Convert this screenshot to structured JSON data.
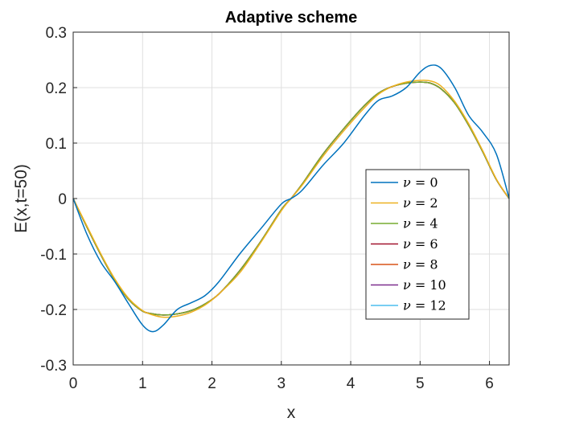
{
  "chart_data": {
    "type": "line",
    "title": "Adaptive scheme",
    "xlabel": "x",
    "ylabel": "E(x,t=50)",
    "xlim": [
      0,
      6.2832
    ],
    "ylim": [
      -0.3,
      0.3
    ],
    "xticks": [
      0,
      1,
      2,
      3,
      4,
      5,
      6
    ],
    "xtick_labels": [
      "0",
      "1",
      "2",
      "3",
      "4",
      "5",
      "6"
    ],
    "yticks": [
      -0.3,
      -0.2,
      -0.1,
      0,
      0.1,
      0.2,
      0.3
    ],
    "ytick_labels": [
      "-0.3",
      "-0.2",
      "-0.1",
      "0",
      "0.1",
      "0.2",
      "0.3"
    ],
    "grid": true,
    "legend_position": "center-right",
    "x": [
      0,
      0.2,
      0.4,
      0.6,
      0.8,
      1.0,
      1.15,
      1.3,
      1.5,
      1.7,
      1.9,
      2.1,
      2.4,
      2.7,
      3.0,
      3.14,
      3.3,
      3.6,
      3.9,
      4.2,
      4.4,
      4.6,
      4.8,
      5.0,
      5.15,
      5.3,
      5.5,
      5.7,
      5.9,
      6.1,
      6.2832
    ],
    "series": [
      {
        "name": "ν = 0",
        "label_sym": "ν",
        "label_rest": " = 0",
        "color": "#0072BD",
        "values": [
          0,
          -0.065,
          -0.115,
          -0.15,
          -0.19,
          -0.228,
          -0.24,
          -0.228,
          -0.2,
          -0.188,
          -0.175,
          -0.15,
          -0.1,
          -0.055,
          -0.01,
          0.0,
          0.015,
          0.06,
          0.1,
          0.15,
          0.177,
          0.185,
          0.2,
          0.228,
          0.24,
          0.235,
          0.2,
          0.15,
          0.12,
          0.08,
          0.0
        ]
      },
      {
        "name": "ν = 2",
        "label_sym": "ν",
        "label_rest": " = 2",
        "color": "#EDB120",
        "values": [
          0,
          -0.05,
          -0.1,
          -0.145,
          -0.18,
          -0.202,
          -0.21,
          -0.214,
          -0.212,
          -0.205,
          -0.192,
          -0.172,
          -0.134,
          -0.08,
          -0.022,
          0.0,
          0.024,
          0.076,
          0.122,
          0.164,
          0.188,
          0.202,
          0.21,
          0.213,
          0.212,
          0.203,
          0.175,
          0.135,
          0.087,
          0.035,
          0.0
        ]
      },
      {
        "name": "ν = 4",
        "label_sym": "ν",
        "label_rest": " = 4",
        "color": "#77AC30",
        "values": [
          0,
          -0.052,
          -0.102,
          -0.147,
          -0.182,
          -0.203,
          -0.208,
          -0.21,
          -0.208,
          -0.202,
          -0.19,
          -0.172,
          -0.13,
          -0.078,
          -0.02,
          0.0,
          0.026,
          0.08,
          0.126,
          0.168,
          0.19,
          0.202,
          0.208,
          0.21,
          0.208,
          0.198,
          0.172,
          0.132,
          0.085,
          0.034,
          0.0
        ]
      },
      {
        "name": "ν = 6",
        "label_sym": "ν",
        "label_rest": " = 6",
        "color": "#A2142F",
        "values": [
          0,
          -0.052,
          -0.102,
          -0.147,
          -0.182,
          -0.203,
          -0.208,
          -0.21,
          -0.208,
          -0.202,
          -0.19,
          -0.172,
          -0.13,
          -0.078,
          -0.02,
          0.0,
          0.026,
          0.08,
          0.126,
          0.168,
          0.19,
          0.202,
          0.208,
          0.21,
          0.208,
          0.198,
          0.172,
          0.132,
          0.085,
          0.034,
          0.0
        ]
      },
      {
        "name": "ν = 8",
        "label_sym": "ν",
        "label_rest": " = 8",
        "color": "#D95319",
        "values": [
          0,
          -0.052,
          -0.102,
          -0.147,
          -0.182,
          -0.203,
          -0.208,
          -0.21,
          -0.208,
          -0.202,
          -0.19,
          -0.172,
          -0.13,
          -0.078,
          -0.02,
          0.0,
          0.026,
          0.08,
          0.126,
          0.168,
          0.19,
          0.202,
          0.208,
          0.21,
          0.208,
          0.198,
          0.172,
          0.132,
          0.085,
          0.034,
          0.0
        ]
      },
      {
        "name": "ν = 10",
        "label_sym": "ν",
        "label_rest": " = 10",
        "color": "#7E2F8E",
        "values": [
          0,
          -0.052,
          -0.102,
          -0.147,
          -0.182,
          -0.203,
          -0.208,
          -0.21,
          -0.208,
          -0.202,
          -0.19,
          -0.172,
          -0.13,
          -0.078,
          -0.02,
          0.0,
          0.026,
          0.08,
          0.126,
          0.168,
          0.19,
          0.202,
          0.208,
          0.21,
          0.208,
          0.198,
          0.172,
          0.132,
          0.085,
          0.034,
          0.0
        ]
      },
      {
        "name": "ν = 12",
        "label_sym": "ν",
        "label_rest": " = 12",
        "color": "#4DBEEE",
        "values": [
          0,
          -0.052,
          -0.102,
          -0.147,
          -0.182,
          -0.203,
          -0.208,
          -0.21,
          -0.208,
          -0.202,
          -0.19,
          -0.172,
          -0.13,
          -0.078,
          -0.02,
          0.0,
          0.026,
          0.08,
          0.126,
          0.168,
          0.19,
          0.202,
          0.208,
          0.21,
          0.208,
          0.198,
          0.172,
          0.132,
          0.085,
          0.034,
          0.0
        ]
      }
    ]
  }
}
